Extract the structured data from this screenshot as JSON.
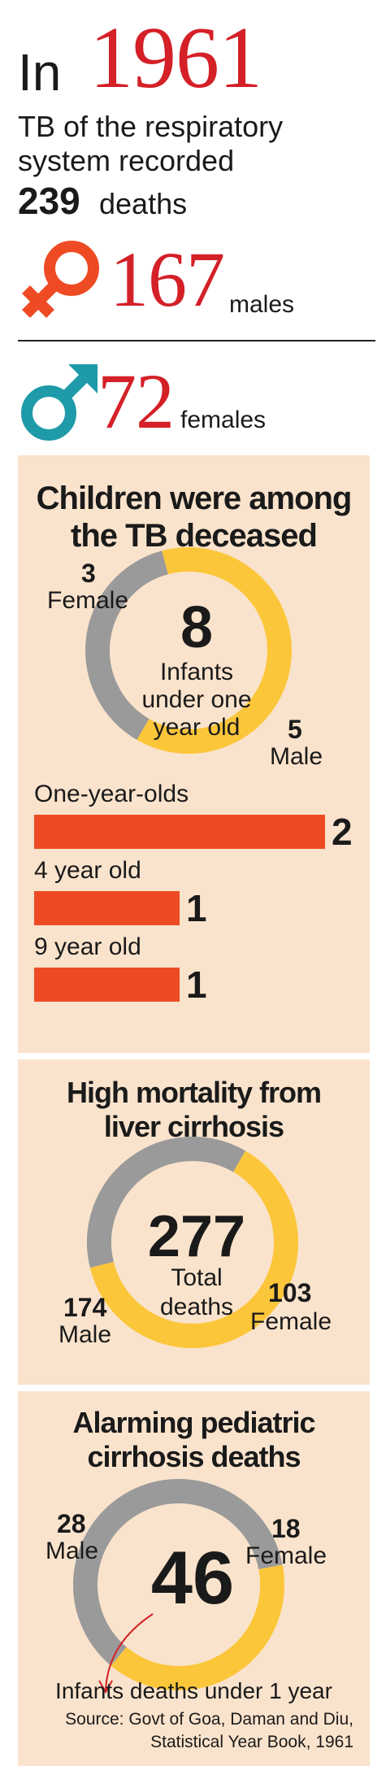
{
  "header": {
    "in_label": "In",
    "year": "1961",
    "intro_line1": "TB of the respiratory",
    "intro_line2": "system recorded",
    "total_number": "239",
    "total_word": "deaths",
    "count_a": "167",
    "label_a": "males",
    "count_b": "72",
    "label_b": "females"
  },
  "colors": {
    "red": "#d42027",
    "orange_icon": "#ee4b24",
    "teal_icon": "#1e9aa8",
    "panel_bg": "#fae3cc",
    "yellow": "#fcc63a",
    "gray": "#9a9a9a",
    "bar": "#ee4b24"
  },
  "icons": {
    "icon_a": "venus-symbol-icon",
    "icon_b": "mars-symbol-icon",
    "arrow": "curved-arrow-icon"
  },
  "chart_data": [
    {
      "type": "pie",
      "title": "Children were among the TB deceased",
      "total": "8",
      "center_text": [
        "Infants",
        "under one",
        "year old"
      ],
      "slices": [
        {
          "name": "Female",
          "value": 3,
          "color": "#9a9a9a"
        },
        {
          "name": "Male",
          "value": 5,
          "color": "#fcc63a"
        }
      ]
    },
    {
      "type": "bar",
      "categories": [
        "One-year-olds",
        "4 year old",
        "9 year old"
      ],
      "values": [
        2,
        1,
        1
      ]
    },
    {
      "type": "pie",
      "title": "High mortality from liver cirrhosis",
      "total": "277",
      "center_text": [
        "Total",
        "deaths"
      ],
      "slices": [
        {
          "name": "Male",
          "value": 174,
          "color": "#fcc63a"
        },
        {
          "name": "Female",
          "value": 103,
          "color": "#9a9a9a"
        }
      ]
    },
    {
      "type": "pie",
      "title": "Alarming pediatric cirrhosis deaths",
      "total": "46",
      "annotation": "Infants deaths under 1 year",
      "slices": [
        {
          "name": "Male",
          "value": 28,
          "color": "#9a9a9a"
        },
        {
          "name": "Female",
          "value": 18,
          "color": "#fcc63a"
        }
      ]
    }
  ],
  "panels": {
    "children_title_1": "Children were among",
    "children_title_2": "the TB deceased",
    "cirrhosis_title_1": "High mortality from",
    "cirrhosis_title_2": "liver cirrhosis",
    "pediatric_title_1": "Alarming pediatric",
    "pediatric_title_2": "cirrhosis deaths"
  },
  "source": {
    "line1": "Source: Govt of Goa, Daman and Diu,",
    "line2": "Statistical Year Book, 1961"
  }
}
